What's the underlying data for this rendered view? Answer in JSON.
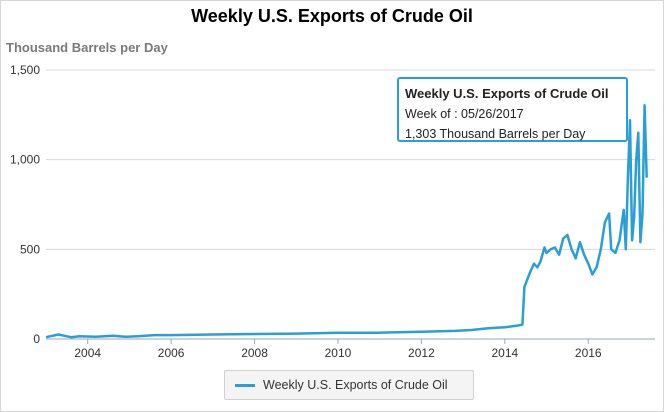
{
  "chart_data": {
    "type": "line",
    "title": "Weekly U.S. Exports of Crude Oil",
    "ylabel": "Thousand Barrels per Day",
    "ylim": [
      0,
      1500
    ],
    "yticks": [
      0,
      500,
      1000,
      1500
    ],
    "ytick_labels": [
      "0",
      "500",
      "1,000",
      "1,500"
    ],
    "xlim": [
      2003.0,
      2017.6
    ],
    "xticks": [
      2004,
      2006,
      2008,
      2010,
      2012,
      2014,
      2016
    ],
    "xtick_labels": [
      "2004",
      "2006",
      "2008",
      "2010",
      "2012",
      "2014",
      "2016"
    ],
    "grid": true,
    "series": [
      {
        "name": "Weekly U.S. Exports of Crude Oil",
        "color": "#2a9fd6",
        "x": [
          2003.0,
          2003.3,
          2003.6,
          2003.8,
          2004.2,
          2004.6,
          2004.9,
          2005.2,
          2005.6,
          2006.0,
          2007.0,
          2008.0,
          2009.0,
          2010.0,
          2011.0,
          2012.0,
          2012.8,
          2013.2,
          2013.6,
          2014.0,
          2014.3,
          2014.42,
          2014.47,
          2014.55,
          2014.62,
          2014.7,
          2014.78,
          2014.85,
          2014.95,
          2015.0,
          2015.1,
          2015.2,
          2015.3,
          2015.4,
          2015.5,
          2015.6,
          2015.7,
          2015.8,
          2015.9,
          2016.0,
          2016.1,
          2016.2,
          2016.3,
          2016.4,
          2016.5,
          2016.55,
          2016.65,
          2016.75,
          2016.85,
          2016.9,
          2016.95,
          2017.0,
          2017.05,
          2017.1,
          2017.15,
          2017.2,
          2017.25,
          2017.3,
          2017.35,
          2017.4
        ],
        "values": [
          10,
          25,
          10,
          15,
          12,
          18,
          12,
          15,
          22,
          22,
          25,
          28,
          30,
          35,
          35,
          40,
          45,
          50,
          60,
          65,
          75,
          80,
          290,
          340,
          380,
          420,
          400,
          430,
          510,
          480,
          500,
          510,
          470,
          560,
          580,
          500,
          450,
          540,
          470,
          420,
          360,
          400,
          500,
          650,
          700,
          500,
          480,
          550,
          720,
          500,
          900,
          1220,
          550,
          680,
          1000,
          1150,
          540,
          700,
          1303,
          900
        ]
      }
    ],
    "legend_position": "bottom-center",
    "tooltip": {
      "title": "Weekly U.S. Exports of Crude Oil",
      "line1": "Week of : 05/26/2017",
      "line2": "1,303 Thousand Barrels per Day"
    }
  }
}
